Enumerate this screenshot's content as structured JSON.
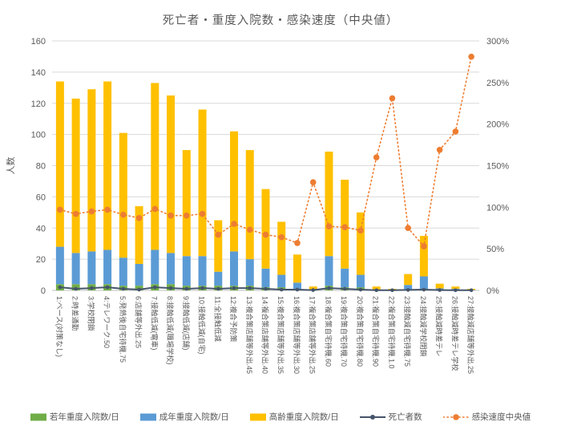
{
  "chart_data": {
    "type": "bar",
    "subtype": "stacked-bars-with-lines",
    "title": "死亡者・重度入院数・感染速度（中央値）",
    "ylabel": "人数",
    "grid": true,
    "legend_position": "bottom",
    "axis_left": {
      "min": 0,
      "max": 160,
      "step": 20,
      "tick_labels": [
        "0",
        "20",
        "40",
        "60",
        "80",
        "100",
        "120",
        "140",
        "160"
      ]
    },
    "axis_right": {
      "min": 0,
      "max": 300,
      "step": 50,
      "unit": "%",
      "tick_labels": [
        "0%",
        "50%",
        "100%",
        "150%",
        "200%",
        "250%",
        "300%"
      ]
    },
    "categories": [
      "1:ベース(対策なし)",
      "2:時差通勤",
      "3:学校閉鎖",
      "4:テレワーク.50",
      "5:発熱後自宅待機.75",
      "6:店舗等外出.25",
      "7:接触低減(電車)",
      "8:接触低減(職場学校)",
      "9:接触低減(店舗)",
      "10:接触低減(自宅)",
      "11:全接触低減",
      "12:複合予防策",
      "13:複合策店舗等外出.45",
      "14:複合策店舗等外出.40",
      "15:複合策店舗等外出.35",
      "16:複合策店舗等外出.30",
      "17:複合策店舗等外出.25",
      "18:複合策自宅待機.60",
      "19:複合策自宅待機.70",
      "20:複合策自宅待機.80",
      "21:複合策自宅待機.90",
      "22:複合策自宅待機.1.0",
      "23:接触減自宅待機.75",
      "24:接触減学校閉鎖",
      "25:接触減時差テレ",
      "26:接触減時差テレ学校",
      "27:接触減店舗等外出.25"
    ],
    "series": [
      {
        "name": "若年重度入院数/日",
        "type": "bar",
        "color": "#70AD47",
        "values": [
          4,
          4,
          4,
          4,
          3,
          3,
          4,
          4,
          3,
          3,
          3,
          3,
          3,
          2,
          2,
          1,
          0,
          3,
          2,
          2,
          0,
          0,
          0.5,
          1,
          0.3,
          0.2,
          0
        ]
      },
      {
        "name": "成年重度入院数/日",
        "type": "bar",
        "color": "#5B9BD5",
        "values": [
          24,
          20,
          21,
          22,
          18,
          14,
          22,
          20,
          19,
          19,
          9,
          22,
          17,
          12,
          8,
          4,
          0.5,
          19,
          12,
          8,
          0.5,
          0.2,
          3,
          8,
          1,
          0.8,
          0.3
        ]
      },
      {
        "name": "高齢重度入院数/日",
        "type": "bar",
        "color": "#FFC000",
        "values": [
          106,
          99,
          104,
          108,
          80,
          37,
          107,
          101,
          68,
          94,
          33,
          77,
          70,
          51,
          34,
          18,
          2,
          67,
          57,
          40,
          2,
          0.8,
          7,
          26,
          3,
          1.5,
          0.7
        ]
      },
      {
        "name": "死亡者数",
        "type": "line",
        "axis": "left",
        "dotted": false,
        "color": "#44546A",
        "values": [
          2,
          1,
          1.5,
          2,
          1,
          0.5,
          2,
          1.5,
          1,
          1.5,
          1,
          1.5,
          1.5,
          1,
          0.5,
          0.5,
          0.2,
          1.5,
          1,
          0.5,
          0.1,
          0.1,
          0.3,
          0.5,
          0.2,
          0.1,
          0.1
        ]
      },
      {
        "name": "感染速度中央値",
        "type": "line",
        "axis": "right",
        "dotted": true,
        "color": "#ED7D31",
        "values": [
          97,
          92,
          95,
          97,
          91,
          87,
          98,
          90,
          90,
          92,
          67,
          80,
          73,
          67,
          64,
          57,
          130,
          77,
          76,
          72,
          160,
          231,
          75,
          53,
          169,
          191,
          281
        ]
      }
    ],
    "colors": {
      "gridline": "#D9D9D9",
      "axis_line": "#BFBFBF",
      "text": "#595959"
    }
  }
}
